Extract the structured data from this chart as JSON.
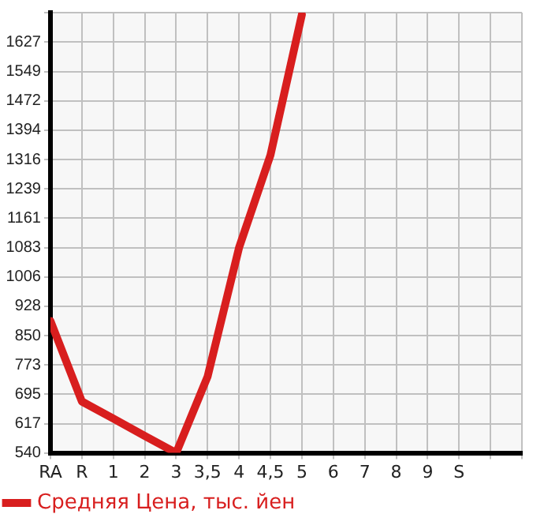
{
  "chart_data": {
    "type": "line",
    "categories": [
      "RA",
      "R",
      "1",
      "2",
      "3",
      "3,5",
      "4",
      "4,5",
      "5",
      "6",
      "7",
      "8",
      "9",
      "S",
      null,
      null
    ],
    "series": [
      {
        "name": "Средняя Цена, тыс. йен",
        "color": "#d81e1e",
        "values": [
          889,
          676,
          631,
          585,
          540,
          742,
          1083,
          1328,
          1700,
          null,
          null,
          null,
          null,
          null,
          null,
          null
        ]
      }
    ],
    "ylim": [
      540,
      1705
    ],
    "yticks": [
      540,
      617,
      695,
      773,
      850,
      928,
      1006,
      1083,
      1161,
      1239,
      1316,
      1394,
      1472,
      1549,
      1627,
      {
        "value": 1705,
        "label": null
      }
    ],
    "grid": true,
    "legend": "bottom left",
    "marker": "none",
    "line_style": "solid"
  }
}
